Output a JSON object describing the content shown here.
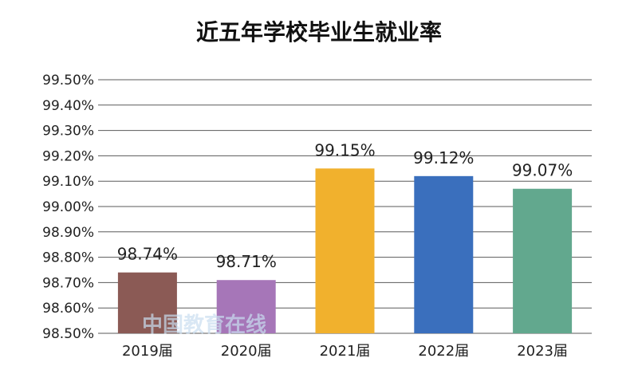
{
  "chart_data": {
    "type": "bar",
    "title": "近五年学校毕业生就业率",
    "categories": [
      "2019届",
      "2020届",
      "2021届",
      "2022届",
      "2023届"
    ],
    "values": [
      98.74,
      98.71,
      99.15,
      99.12,
      99.07
    ],
    "data_labels": [
      "98.74%",
      "98.71%",
      "99.15%",
      "99.12%",
      "99.07%"
    ],
    "colors": [
      "#8b5a55",
      "#a676b8",
      "#f1b12d",
      "#3a6fbd",
      "#62a88e"
    ],
    "ylim": [
      98.5,
      99.5
    ],
    "yticks": [
      "99.50%",
      "99.40%",
      "99.30%",
      "99.20%",
      "99.10%",
      "99.00%",
      "98.90%",
      "98.80%",
      "98.70%",
      "98.60%",
      "98.50%"
    ],
    "ytick_values": [
      99.5,
      99.4,
      99.3,
      99.2,
      99.1,
      99.0,
      98.9,
      98.8,
      98.7,
      98.6,
      98.5
    ],
    "grid": true,
    "legend": "none"
  },
  "watermark": "中国教育在线"
}
